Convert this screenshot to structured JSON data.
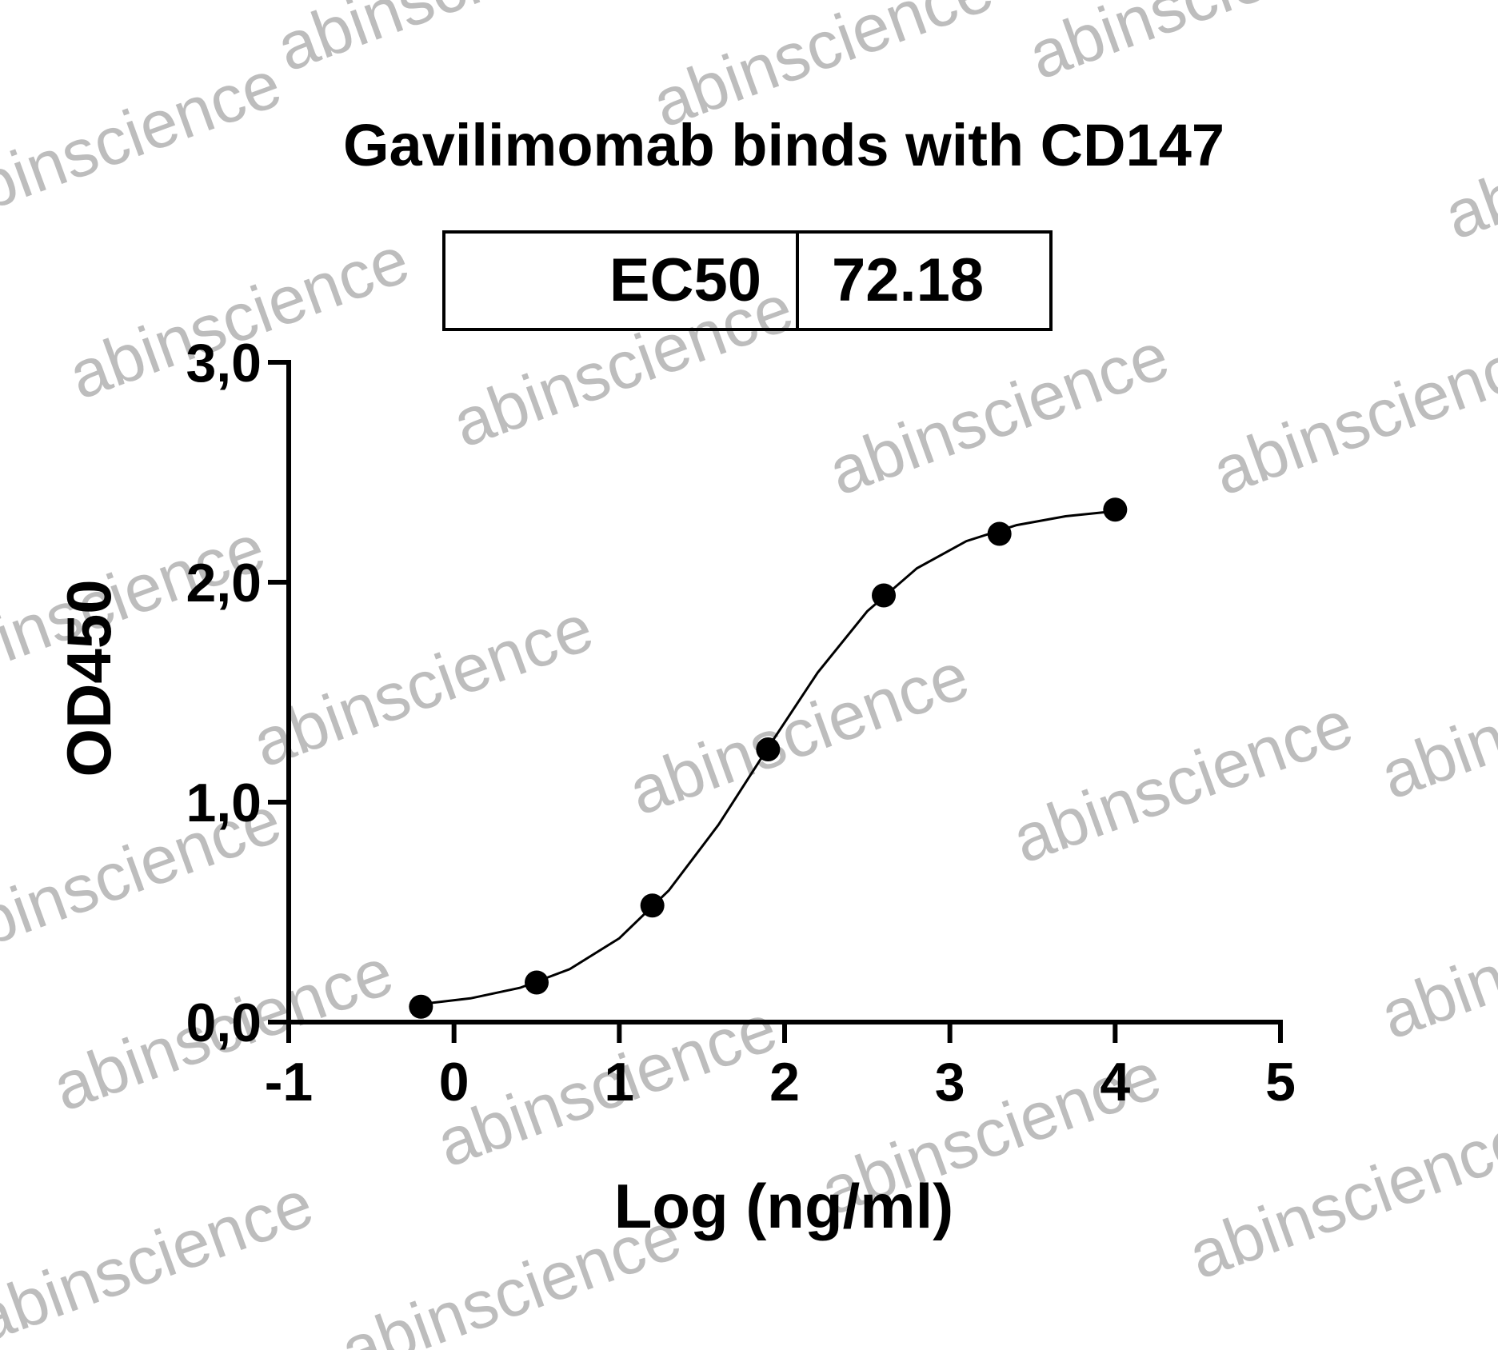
{
  "chart_data": {
    "type": "scatter",
    "title": "Gavilimomab binds with CD147",
    "ec50_table": {
      "label": "EC50",
      "value": 72.18
    },
    "x_label": "Log (ng/ml)",
    "y_label": "OD450",
    "x": [
      -0.2,
      0.5,
      1.2,
      1.9,
      2.6,
      3.3,
      4.0
    ],
    "values": [
      0.07,
      0.18,
      0.53,
      1.24,
      1.94,
      2.22,
      2.33
    ],
    "color": "#000000",
    "curve": {
      "x": [
        -0.2,
        0.1,
        0.4,
        0.7,
        1.0,
        1.3,
        1.6,
        1.9,
        2.2,
        2.5,
        2.8,
        3.1,
        3.4,
        3.7,
        4.0
      ],
      "values": [
        0.082,
        0.108,
        0.156,
        0.241,
        0.381,
        0.599,
        0.897,
        1.248,
        1.589,
        1.868,
        2.063,
        2.187,
        2.259,
        2.3,
        2.323
      ]
    },
    "xlim": [
      -1,
      5
    ],
    "xticks": [
      -1,
      0,
      1,
      2,
      3,
      4,
      5
    ],
    "ylim": [
      0,
      3
    ],
    "yticks": [
      {
        "value": 0,
        "label": "0,0"
      },
      {
        "value": 1,
        "label": "1,0"
      },
      {
        "value": 2,
        "label": "2,0"
      },
      {
        "value": 3,
        "label": "3,0"
      }
    ],
    "watermark": "abinscience"
  }
}
